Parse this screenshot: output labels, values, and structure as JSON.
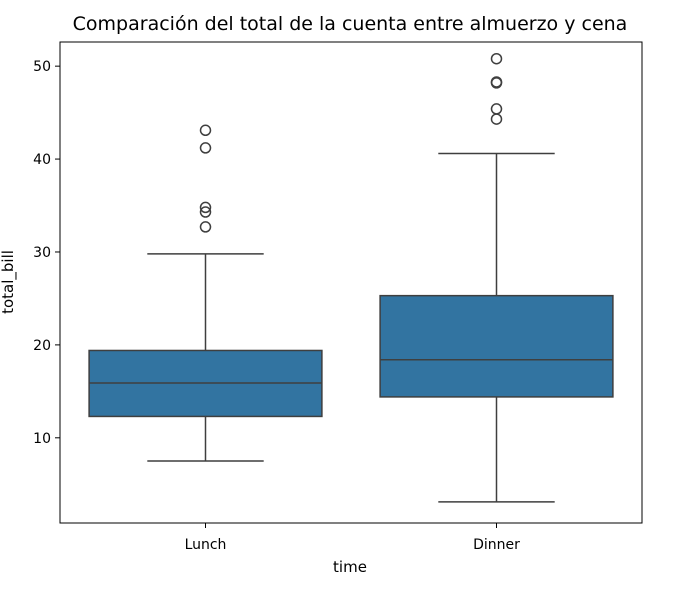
{
  "chart_data": {
    "type": "box",
    "title": "Comparación del total de la cuenta entre almuerzo y cena",
    "xlabel": "time",
    "ylabel": "total_bill",
    "categories": [
      "Lunch",
      "Dinner"
    ],
    "yticks": [
      10,
      20,
      30,
      40,
      50
    ],
    "ylim": [
      0.83,
      52.6
    ],
    "grid": false,
    "box_color": "#3274a1",
    "line_color": "#3f3f3f",
    "boxes": [
      {
        "category": "Lunch",
        "whisker_low": 7.5,
        "q1": 12.3,
        "median": 15.9,
        "q3": 19.4,
        "whisker_high": 29.8,
        "outliers": [
          32.7,
          34.3,
          34.8,
          41.2,
          43.1
        ]
      },
      {
        "category": "Dinner",
        "whisker_low": 3.1,
        "q1": 14.4,
        "median": 18.4,
        "q3": 25.3,
        "whisker_high": 40.6,
        "outliers": [
          44.3,
          45.4,
          48.2,
          48.3,
          50.8
        ]
      }
    ]
  }
}
